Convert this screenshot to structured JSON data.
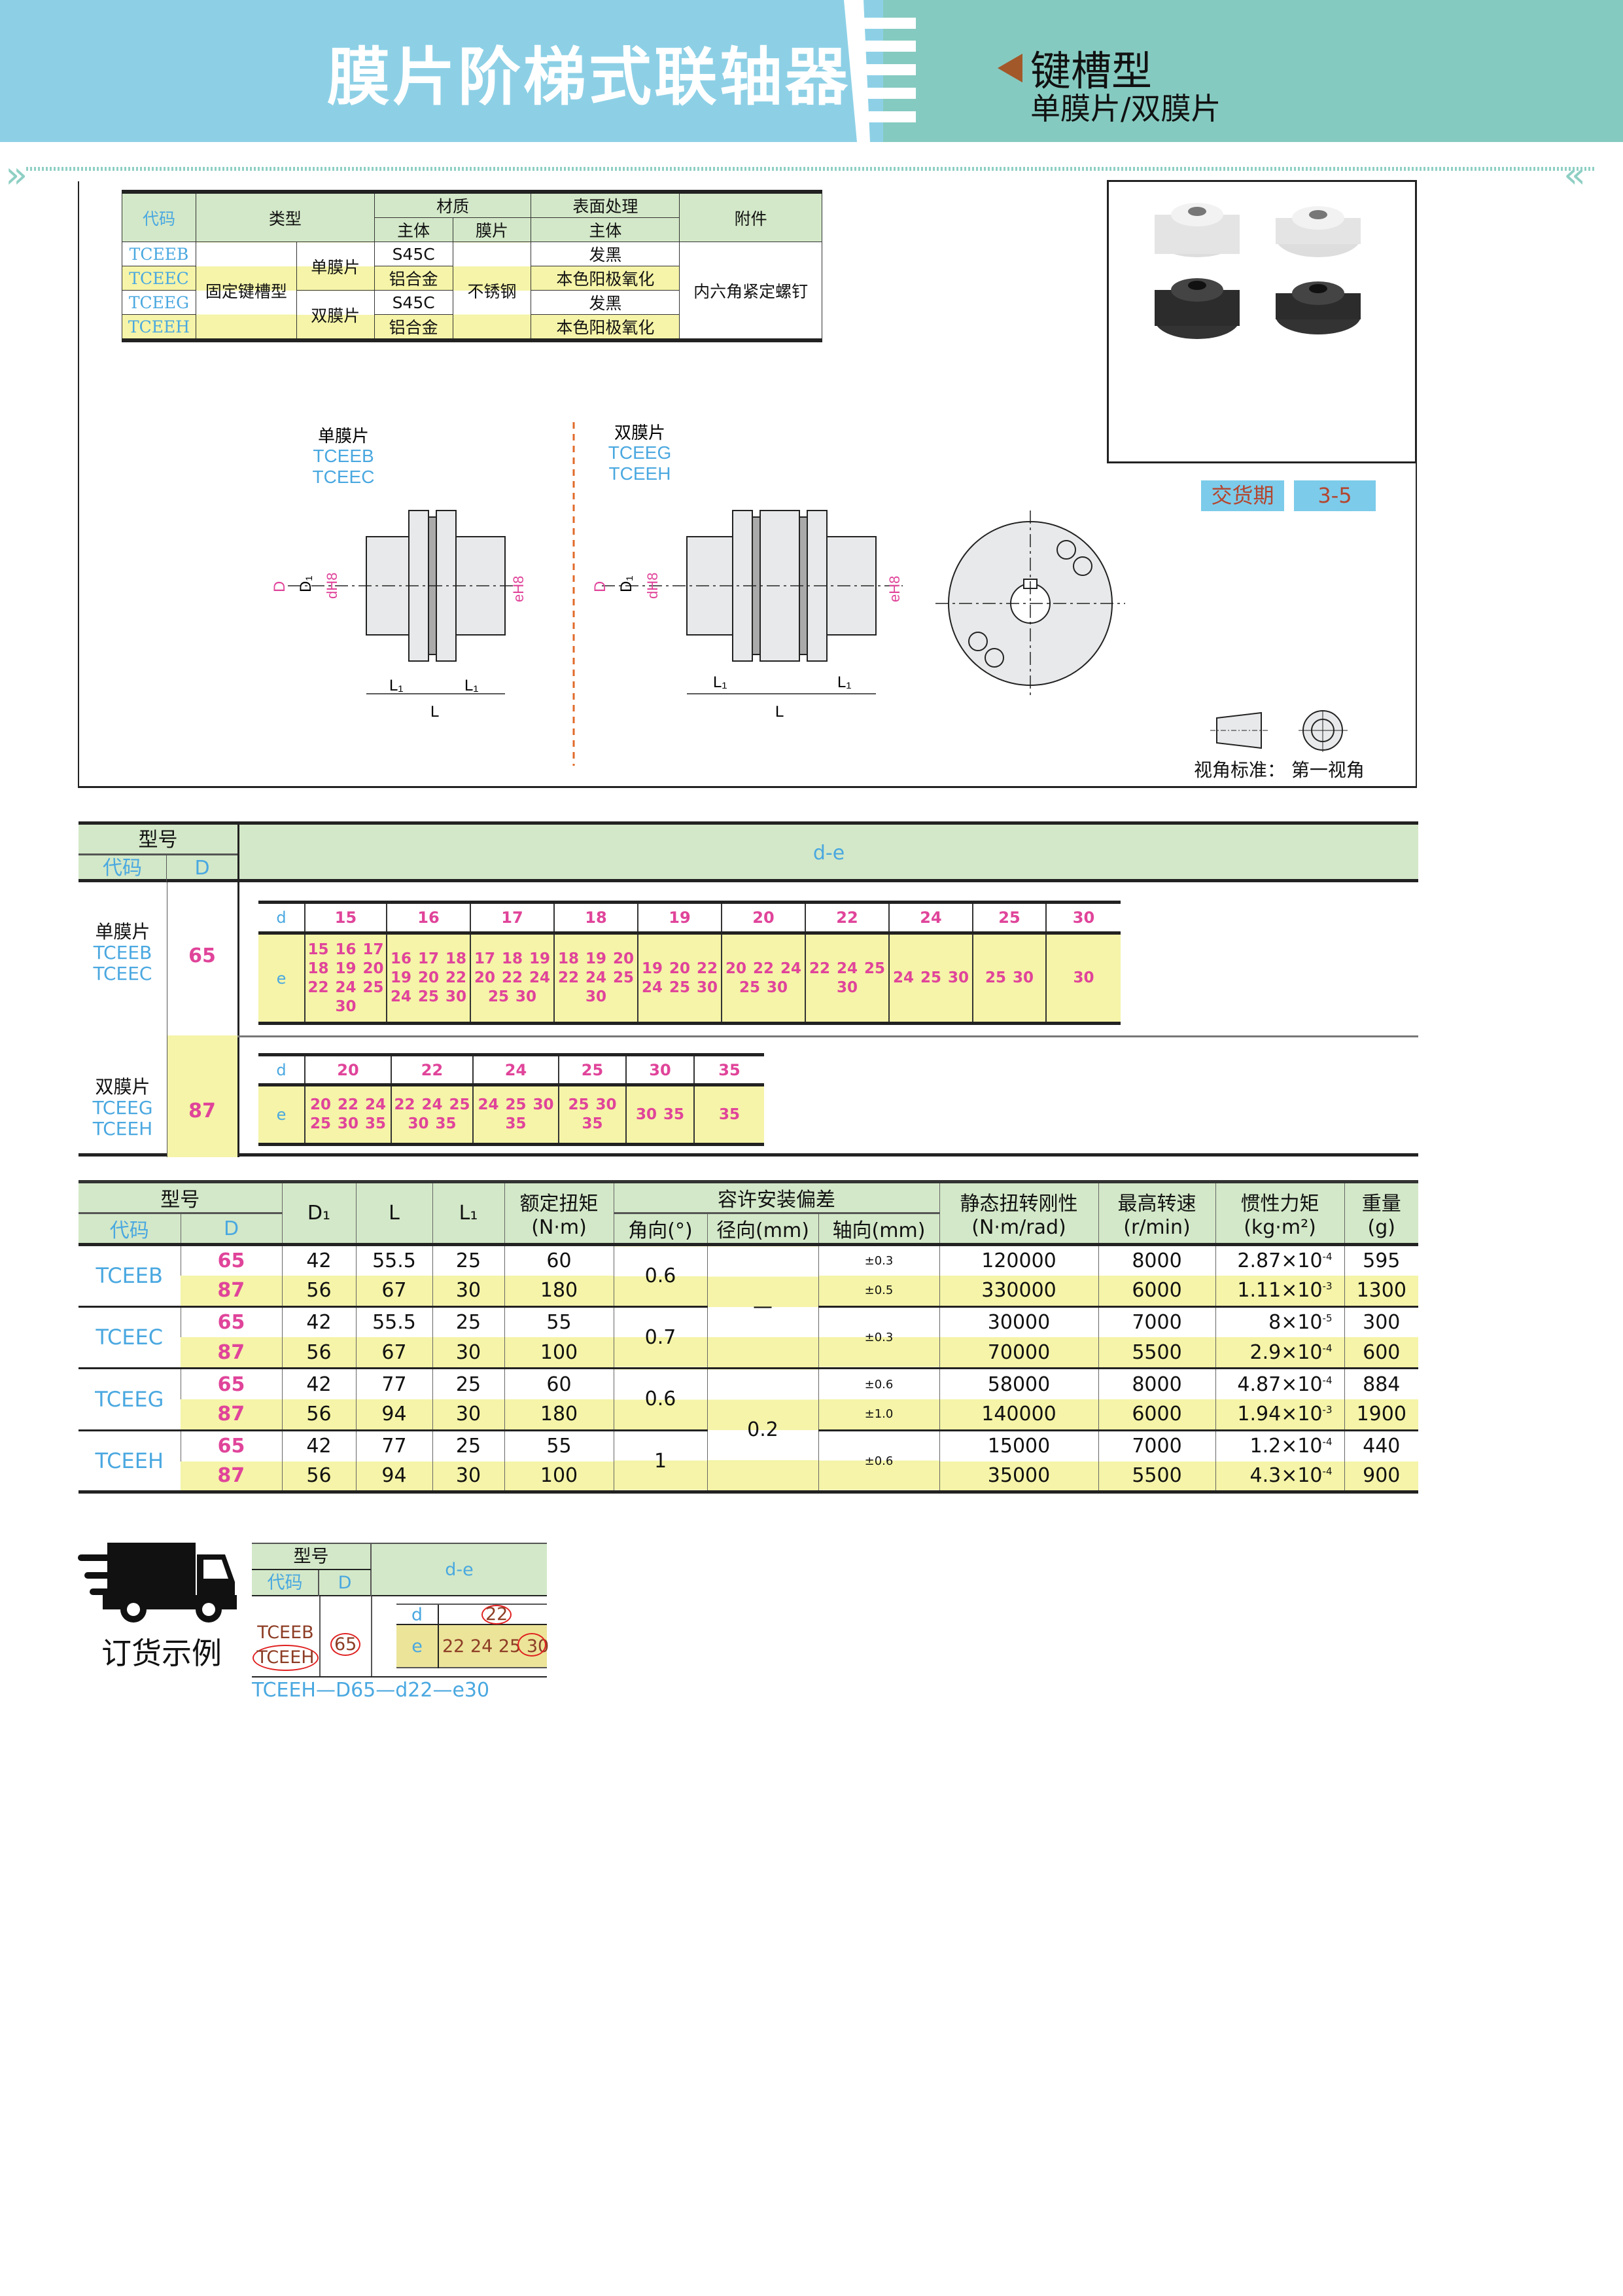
{
  "header": {
    "title": "膜片阶梯式联轴器",
    "subtitle": "键槽型",
    "subtitle2": "单膜片/双膜片",
    "colors": {
      "left": "#8dd0e6",
      "right": "#85cac0",
      "arrow": "#a3582a"
    }
  },
  "material_table": {
    "headers": {
      "code": "代码",
      "type": "类型",
      "material": "材质",
      "body": "主体",
      "diaphragm": "膜片",
      "surface": "表面处理",
      "surface_body": "主体",
      "accessory": "附件"
    },
    "codes": [
      "TCEEB",
      "TCEEC",
      "TCEEG",
      "TCEEH"
    ],
    "type_main": "固定键槽型",
    "single": "单膜片",
    "double": "双膜片",
    "materials": [
      "S45C",
      "铝合金",
      "S45C",
      "铝合金"
    ],
    "diaphragm": "不锈钢",
    "surfaces": [
      "发黑",
      "本色阳极氧化",
      "发黑",
      "本色阳极氧化"
    ],
    "accessory": "内六角紧定螺钉"
  },
  "drawings": {
    "single": {
      "label": "单膜片",
      "codes": [
        "TCEEB",
        "TCEEC"
      ]
    },
    "double": {
      "label": "双膜片",
      "codes": [
        "TCEEG",
        "TCEEH"
      ]
    },
    "dims": {
      "D": "D",
      "D1": "D₁",
      "d": "dH8",
      "e": "eH8",
      "L1": "L₁",
      "L": "L"
    }
  },
  "delivery": {
    "label": "交货期",
    "value": "3-5"
  },
  "view_standard": {
    "label": "视角标准：",
    "value": "第一视角"
  },
  "de_table": {
    "headers": {
      "model": "型号",
      "code": "代码",
      "D": "D",
      "de": "d-e",
      "d": "d",
      "e": "e"
    },
    "groups": [
      {
        "label": "单膜片",
        "codes": [
          "TCEEB",
          "TCEEC"
        ],
        "D": "65",
        "d": [
          "15",
          "16",
          "17",
          "18",
          "19",
          "20",
          "22",
          "24",
          "25",
          "30"
        ],
        "e": [
          "15 16 17 18 19 20 22 24 25 30",
          "16 17 18 19 20 22 24 25 30",
          "17 18 19 20 22 24 25 30",
          "18 19 20 22 24 25 30",
          "19 20 22 24 25 30",
          "20 22 24 25 30",
          "22 24 25 30",
          "24 25 30",
          "25 30",
          "30"
        ]
      },
      {
        "label": "双膜片",
        "codes": [
          "TCEEG",
          "TCEEH"
        ],
        "D": "87",
        "d": [
          "20",
          "22",
          "24",
          "25",
          "30",
          "35"
        ],
        "e": [
          "20 22 24 25 30 35",
          "22 24 25 30 35",
          "24 25 30 35",
          "25 30 35",
          "30 35",
          "35"
        ]
      }
    ]
  },
  "spec_table": {
    "headers": {
      "model": "型号",
      "code": "代码",
      "D": "D",
      "D1": "D₁",
      "L": "L",
      "L1": "L₁",
      "torque": "额定扭矩",
      "torque_unit": "(N·m)",
      "tolerance": "容许安装偏差",
      "angle": "角向(°)",
      "radial": "径向(mm)",
      "axial": "轴向(mm)",
      "stiffness": "静态扭转刚性",
      "stiffness_unit": "(N·m/rad)",
      "speed": "最高转速",
      "speed_unit": "(r/min)",
      "inertia": "惯性力矩",
      "inertia_unit": "(kg·m²)",
      "weight": "重量",
      "weight_unit": "(g)"
    },
    "rows": [
      {
        "code": "TCEEB",
        "D": "65",
        "D1": "42",
        "L": "55.5",
        "L1": "25",
        "torque": "60",
        "angle": "0.6",
        "radial": "—",
        "axial": "±0.3",
        "stiffness": "120000",
        "speed": "8000",
        "inertia": "2.87×10",
        "inertia_exp": "-4",
        "weight": "595"
      },
      {
        "code": "TCEEB",
        "D": "87",
        "D1": "56",
        "L": "67",
        "L1": "30",
        "torque": "180",
        "angle": "0.6",
        "radial": "—",
        "axial": "±0.5",
        "stiffness": "330000",
        "speed": "6000",
        "inertia": "1.11×10",
        "inertia_exp": "-3",
        "weight": "1300"
      },
      {
        "code": "TCEEC",
        "D": "65",
        "D1": "42",
        "L": "55.5",
        "L1": "25",
        "torque": "55",
        "angle": "0.7",
        "radial": "—",
        "axial": "±0.3",
        "stiffness": "30000",
        "speed": "7000",
        "inertia": "8×10",
        "inertia_exp": "-5",
        "weight": "300"
      },
      {
        "code": "TCEEC",
        "D": "87",
        "D1": "56",
        "L": "67",
        "L1": "30",
        "torque": "100",
        "angle": "0.7",
        "radial": "—",
        "axial": "±0.3",
        "stiffness": "70000",
        "speed": "5500",
        "inertia": "2.9×10",
        "inertia_exp": "-4",
        "weight": "600"
      },
      {
        "code": "TCEEG",
        "D": "65",
        "D1": "42",
        "L": "77",
        "L1": "25",
        "torque": "60",
        "angle": "0.6",
        "radial": "0.2",
        "axial": "±0.6",
        "stiffness": "58000",
        "speed": "8000",
        "inertia": "4.87×10",
        "inertia_exp": "-4",
        "weight": "884"
      },
      {
        "code": "TCEEG",
        "D": "87",
        "D1": "56",
        "L": "94",
        "L1": "30",
        "torque": "180",
        "angle": "0.6",
        "radial": "0.2",
        "axial": "±1.0",
        "stiffness": "140000",
        "speed": "6000",
        "inertia": "1.94×10",
        "inertia_exp": "-3",
        "weight": "1900"
      },
      {
        "code": "TCEEH",
        "D": "65",
        "D1": "42",
        "L": "77",
        "L1": "25",
        "torque": "55",
        "angle": "1",
        "radial": "0.2",
        "axial": "±0.6",
        "stiffness": "15000",
        "speed": "7000",
        "inertia": "1.2×10",
        "inertia_exp": "-4",
        "weight": "440"
      },
      {
        "code": "TCEEH",
        "D": "87",
        "D1": "56",
        "L": "94",
        "L1": "30",
        "torque": "100",
        "angle": "1",
        "radial": "0.2",
        "axial": "±0.6",
        "stiffness": "35000",
        "speed": "5500",
        "inertia": "4.3×10",
        "inertia_exp": "-4",
        "weight": "900"
      }
    ]
  },
  "order_example": {
    "title": "订货示例",
    "headers": {
      "model": "型号",
      "code": "代码",
      "D": "D",
      "de": "d-e",
      "d": "d",
      "e": "e"
    },
    "codes": [
      "TCEEB",
      "TCEEH"
    ],
    "D": "65",
    "d": "22",
    "e": "22 24 25 30",
    "selected": {
      "code": "TCEEH",
      "D": "65",
      "d": "22",
      "e": "30"
    },
    "result": "TCEEH—D65—d22—e30"
  }
}
